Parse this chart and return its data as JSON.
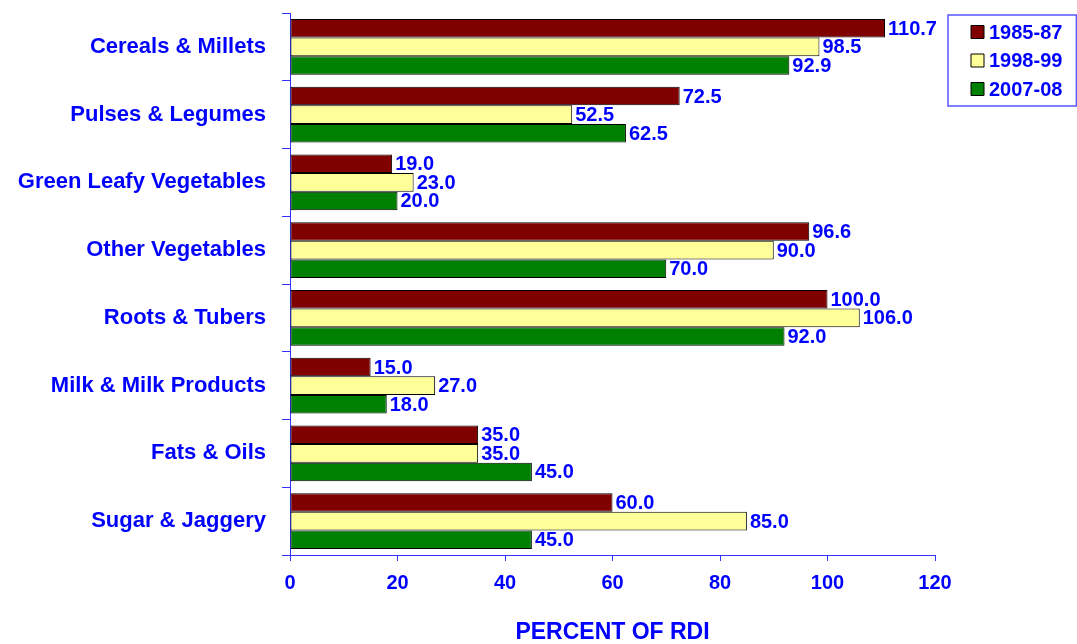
{
  "chart_data": {
    "type": "bar",
    "orientation": "horizontal",
    "categories": [
      "Cereals & Millets",
      "Pulses & Legumes",
      "Green Leafy Vegetables",
      "Other Vegetables",
      "Roots & Tubers",
      "Milk & Milk Products",
      "Fats & Oils",
      "Sugar & Jaggery"
    ],
    "series": [
      {
        "name": "1985-87",
        "color": "#800000",
        "values": [
          110.7,
          72.5,
          19.0,
          96.6,
          100.0,
          15.0,
          35.0,
          60.0
        ],
        "value_labels": [
          "110.7",
          "72.5",
          "19.0",
          "96.6",
          "100.0",
          "15.0",
          "35.0",
          "60.0"
        ]
      },
      {
        "name": "1998-99",
        "color": "#ffff99",
        "values": [
          98.5,
          52.5,
          23.0,
          90.0,
          106.0,
          27.0,
          35.0,
          85.0
        ],
        "value_labels": [
          "98.5",
          "52.5",
          "23.0",
          "90.0",
          "106.0",
          "27.0",
          "35.0",
          "85.0"
        ]
      },
      {
        "name": "2007-08",
        "color": "#008000",
        "values": [
          92.9,
          62.5,
          20.0,
          70.0,
          92.0,
          18.0,
          45.0,
          45.0
        ],
        "value_labels": [
          "92.9",
          "62.5",
          "20.0",
          "70.0",
          "92.0",
          "18.0",
          "45.0",
          "45.0"
        ]
      }
    ],
    "xlim": [
      0,
      120
    ],
    "xticks": [
      0,
      20,
      40,
      60,
      80,
      100,
      120
    ],
    "xlabel": "PERCENT OF RDI",
    "grid": false,
    "legend": "top right"
  }
}
